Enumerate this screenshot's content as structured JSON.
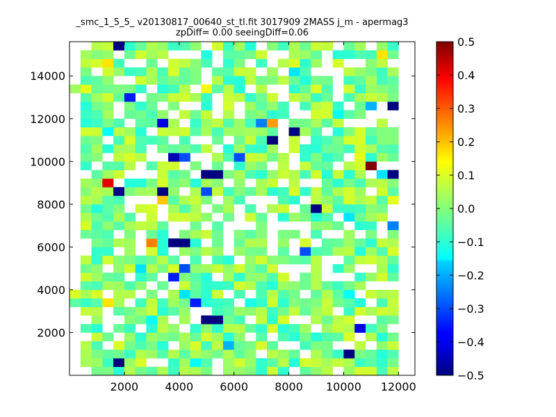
{
  "chart_data": {
    "type": "heatmap",
    "title_lines": [
      "_smc_1_5_5_ v20130817_00640_st_tl.fit 3017909 2MASS j_m - apermag3",
      "zpDiff= 0.00 seeingDiff=0.06"
    ],
    "xlabel": "",
    "ylabel": "",
    "xlim": [
      0,
      12600
    ],
    "ylim": [
      0,
      15600
    ],
    "x_ticks": [
      2000,
      4000,
      6000,
      8000,
      10000,
      12000
    ],
    "y_ticks": [
      2000,
      4000,
      6000,
      8000,
      10000,
      12000,
      14000
    ],
    "cell_size": 400,
    "colorbar": {
      "min": -0.5,
      "max": 0.5,
      "ticks": [
        0.5,
        0.4,
        0.3,
        0.2,
        0.1,
        0.0,
        -0.1,
        -0.2,
        -0.3,
        -0.4,
        -0.5
      ],
      "tick_labels": [
        "0.5",
        "0.4",
        "0.3",
        "0.2",
        "0.1",
        "0.0",
        "−0.1",
        "−0.2",
        "−0.3",
        "−0.4",
        "−0.5"
      ],
      "colormap": "jet"
    },
    "cells": [
      [
        1600,
        15600,
        -0.5
      ],
      [
        1200,
        14800,
        0.15
      ],
      [
        1200,
        13200,
        0.08
      ],
      [
        2000,
        13200,
        -0.35
      ],
      [
        4800,
        13600,
        0.12
      ],
      [
        10000,
        13600,
        0.08
      ],
      [
        8000,
        14400,
        -0.15
      ],
      [
        11600,
        12800,
        -0.5
      ],
      [
        10800,
        12800,
        -0.2
      ],
      [
        3200,
        12000,
        -0.4
      ],
      [
        6800,
        12000,
        -0.25
      ],
      [
        7200,
        12000,
        0.22
      ],
      [
        8000,
        11600,
        -0.5
      ],
      [
        1200,
        11600,
        -0.12
      ],
      [
        7200,
        11200,
        -0.5
      ],
      [
        3600,
        10400,
        -0.45
      ],
      [
        4000,
        10400,
        -0.3
      ],
      [
        6000,
        10400,
        -0.3
      ],
      [
        10800,
        10000,
        0.5
      ],
      [
        11600,
        9600,
        -0.5
      ],
      [
        11200,
        9600,
        -0.15
      ],
      [
        5200,
        9600,
        -0.5
      ],
      [
        4800,
        9600,
        -0.5
      ],
      [
        1200,
        9200,
        0.4
      ],
      [
        1600,
        8800,
        -0.5
      ],
      [
        3200,
        8800,
        -0.5
      ],
      [
        4800,
        8800,
        -0.3
      ],
      [
        3200,
        8400,
        0.18
      ],
      [
        8800,
        8000,
        -0.5
      ],
      [
        10000,
        7600,
        -0.15
      ],
      [
        11600,
        7200,
        -0.25
      ],
      [
        2800,
        6400,
        0.25
      ],
      [
        3600,
        6400,
        -0.5
      ],
      [
        4000,
        6400,
        -0.5
      ],
      [
        8400,
        6000,
        -0.3
      ],
      [
        2400,
        5200,
        -0.15
      ],
      [
        4000,
        5200,
        -0.3
      ],
      [
        3600,
        4800,
        -0.35
      ],
      [
        4000,
        4000,
        -0.15
      ],
      [
        10000,
        4000,
        -0.12
      ],
      [
        1200,
        3600,
        0.15
      ],
      [
        4400,
        3600,
        -0.35
      ],
      [
        2800,
        2800,
        -0.12
      ],
      [
        4800,
        2800,
        -0.5
      ],
      [
        5200,
        2800,
        -0.5
      ],
      [
        10400,
        2400,
        -0.4
      ],
      [
        5600,
        1600,
        -0.2
      ],
      [
        10000,
        1200,
        -0.5
      ],
      [
        1600,
        800,
        -0.5
      ],
      [
        4400,
        800,
        -0.12
      ],
      [
        11200,
        15200,
        0.15
      ],
      [
        10400,
        15200,
        -0.05
      ],
      [
        2800,
        14800,
        -0.02
      ],
      [
        8800,
        12400,
        0.08
      ],
      [
        9600,
        12400,
        -0.12
      ],
      [
        6400,
        9600,
        -0.05
      ],
      [
        10400,
        10400,
        0.1
      ],
      [
        400,
        13600,
        0.1
      ],
      [
        11600,
        8400,
        0.1
      ],
      [
        6400,
        3600,
        -0.1
      ]
    ]
  }
}
